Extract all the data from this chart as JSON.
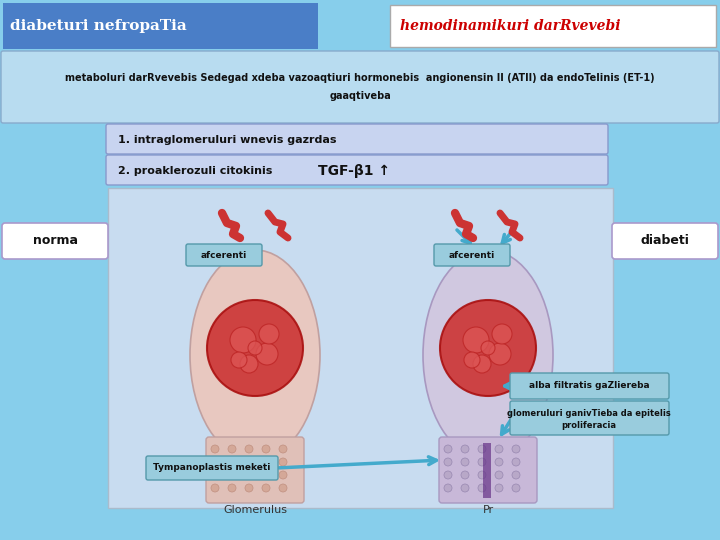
{
  "title_left": "diabeturi nefropaTia",
  "title_right": "hemodinamikuri darRvevebi",
  "title_left_bg": "#4A7EC7",
  "title_left_fg": "#FFFFFF",
  "title_right_bg": "#FFFFFF",
  "title_right_fg": "#CC0000",
  "header_text_line1": "metaboluri darRvevebis Sedegad xdeba vazoaqtiuri hormonebis  angionensin II (ATII) da endoTelinis (ET-1)",
  "header_text_line2": "gaaqtiveba",
  "header_bg": "#B8DCF0",
  "header_border": "#88AACC",
  "box1_text": "1. intraglomeruluri wnevis gazrdas",
  "box2_pre": "2. proaklerozuli citokinis ",
  "box2_tgf": "TGF-β1 ↑",
  "box_bg": "#C8D4F0",
  "box_border": "#8899CC",
  "norma_text": "norma",
  "diabeti_text": "diabeti",
  "label_box_bg": "#FFFFFF",
  "label_box_border": "#AA99CC",
  "aff_left_text": "afcerenti",
  "aff_right_text": "afcerenti",
  "arrow_box1_text": "alba filtratis gaZliereba",
  "arrow_box2_line1": "glomeruluri ganivTieba da epitelis",
  "arrow_box2_line2": "proliferacia",
  "arrow_box3_text": "Tympanoplastis meketi",
  "glomerulus_label": "Glomerulus",
  "p_label": "Pr",
  "bg_color": "#87CEEB",
  "main_bg": "#C8DCF0",
  "left_kidney_color": "#E8C8C0",
  "right_kidney_color": "#D0C8E0",
  "vessel_color": "#CC3333",
  "arrow_box_bg": "#99CCDD",
  "arrow_box_border": "#5599AA",
  "cyan_arrow_color": "#44AACC"
}
